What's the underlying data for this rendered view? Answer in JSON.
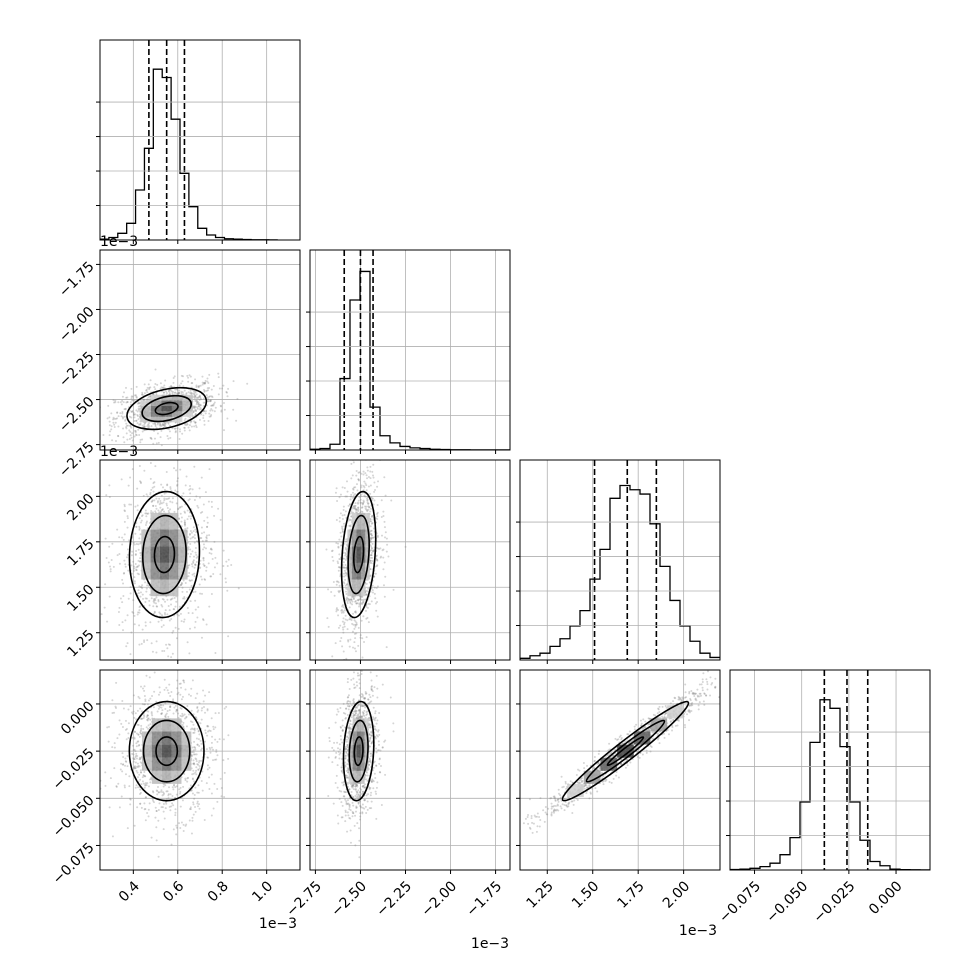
{
  "chart_data": {
    "type": "corner",
    "parameters": 4,
    "axis_ranges": [
      [
        0.00025,
        0.00115
      ],
      [
        -0.00278,
        -0.00167
      ],
      [
        0.0011,
        0.0022
      ],
      [
        -0.088,
        0.018
      ]
    ],
    "diag_ticks": [
      {
        "values": [
          0.0004,
          0.0006,
          0.0008,
          0.001
        ],
        "labels": [
          "0.4",
          "0.6",
          "0.8",
          "1.0"
        ]
      },
      {
        "values": [
          -0.00275,
          -0.0025,
          -0.00225,
          -0.002,
          -0.00175
        ],
        "labels": [
          "−2.75",
          "−2.50",
          "−2.25",
          "−2.00",
          "−1.75"
        ]
      },
      {
        "values": [
          0.00125,
          0.0015,
          0.00175,
          0.002
        ],
        "labels": [
          "1.25",
          "1.50",
          "1.75",
          "2.00"
        ]
      },
      {
        "values": [
          -0.075,
          -0.05,
          -0.025,
          0.0
        ],
        "labels": [
          "−0.075",
          "−0.050",
          "−0.025",
          "0.000"
        ]
      }
    ],
    "offset_labels": {
      "x": [
        "1e−3",
        "1e−3",
        "1e−3",
        ""
      ],
      "y": [
        "",
        "1e−3",
        "1e−3",
        ""
      ]
    },
    "histograms": [
      {
        "bin_start": 0.00025,
        "bin_width": 4e-05,
        "counts": [
          1,
          3,
          8,
          20,
          60,
          110,
          205,
          195,
          145,
          80,
          40,
          14,
          6,
          3,
          1.5,
          1,
          0.5,
          0.3,
          0.2,
          0.1
        ],
        "ymax": 240,
        "quantiles": [
          0.00047,
          0.00055,
          0.00063
        ]
      },
      {
        "bin_start": -0.00278,
        "bin_width": 5.55e-05,
        "counts": [
          1,
          2,
          8,
          100,
          210,
          250,
          60,
          20,
          10,
          5,
          3,
          2,
          1,
          0.6,
          0.4,
          0.3,
          0.2,
          0.1,
          0.1,
          0.1
        ],
        "ymax": 280,
        "quantiles": [
          -0.00259,
          -0.0025,
          -0.00243
        ]
      },
      {
        "bin_start": 0.0011,
        "bin_width": 5.5e-05,
        "counts": [
          2,
          5,
          8,
          16,
          25,
          40,
          58,
          95,
          130,
          190,
          205,
          200,
          195,
          160,
          110,
          70,
          40,
          22,
          8,
          3
        ],
        "ymax": 235,
        "quantiles": [
          0.00151,
          0.00169,
          0.00185
        ]
      },
      {
        "bin_start": -0.088,
        "bin_width": 0.0053,
        "counts": [
          0.5,
          1,
          2,
          4,
          8,
          18,
          38,
          80,
          150,
          200,
          190,
          145,
          80,
          35,
          10,
          5,
          1,
          0.4,
          0.2,
          0.1
        ],
        "ymax": 235,
        "quantiles": [
          -0.038,
          -0.026,
          -0.015
        ]
      }
    ],
    "correlations": [
      {
        "row": 1,
        "col": 0,
        "mean": [
          0.00055,
          -0.00255
        ],
        "sd": [
          8.5e-05,
          5.5e-05
        ],
        "rho": 0.35
      },
      {
        "row": 2,
        "col": 0,
        "mean": [
          0.00054,
          0.00168
        ],
        "sd": [
          7.5e-05,
          0.000165
        ],
        "rho": 0.05
      },
      {
        "row": 2,
        "col": 1,
        "mean": [
          -0.00251,
          0.00168
        ],
        "sd": [
          4.5e-05,
          0.000165
        ],
        "rho": 0.25
      },
      {
        "row": 3,
        "col": 0,
        "mean": [
          0.00055,
          -0.025
        ],
        "sd": [
          8e-05,
          0.0125
        ],
        "rho": 0.0
      },
      {
        "row": 3,
        "col": 1,
        "mean": [
          -0.00251,
          -0.025
        ],
        "sd": [
          4e-05,
          0.0125
        ],
        "rho": 0.15
      },
      {
        "row": 3,
        "col": 2,
        "mean": [
          0.00168,
          -0.025
        ],
        "sd": [
          0.000165,
          0.0125
        ],
        "rho": 0.97
      }
    ],
    "grid": true,
    "line_color": "#000000",
    "point_color": "#888888",
    "density_colormap": "greys"
  }
}
